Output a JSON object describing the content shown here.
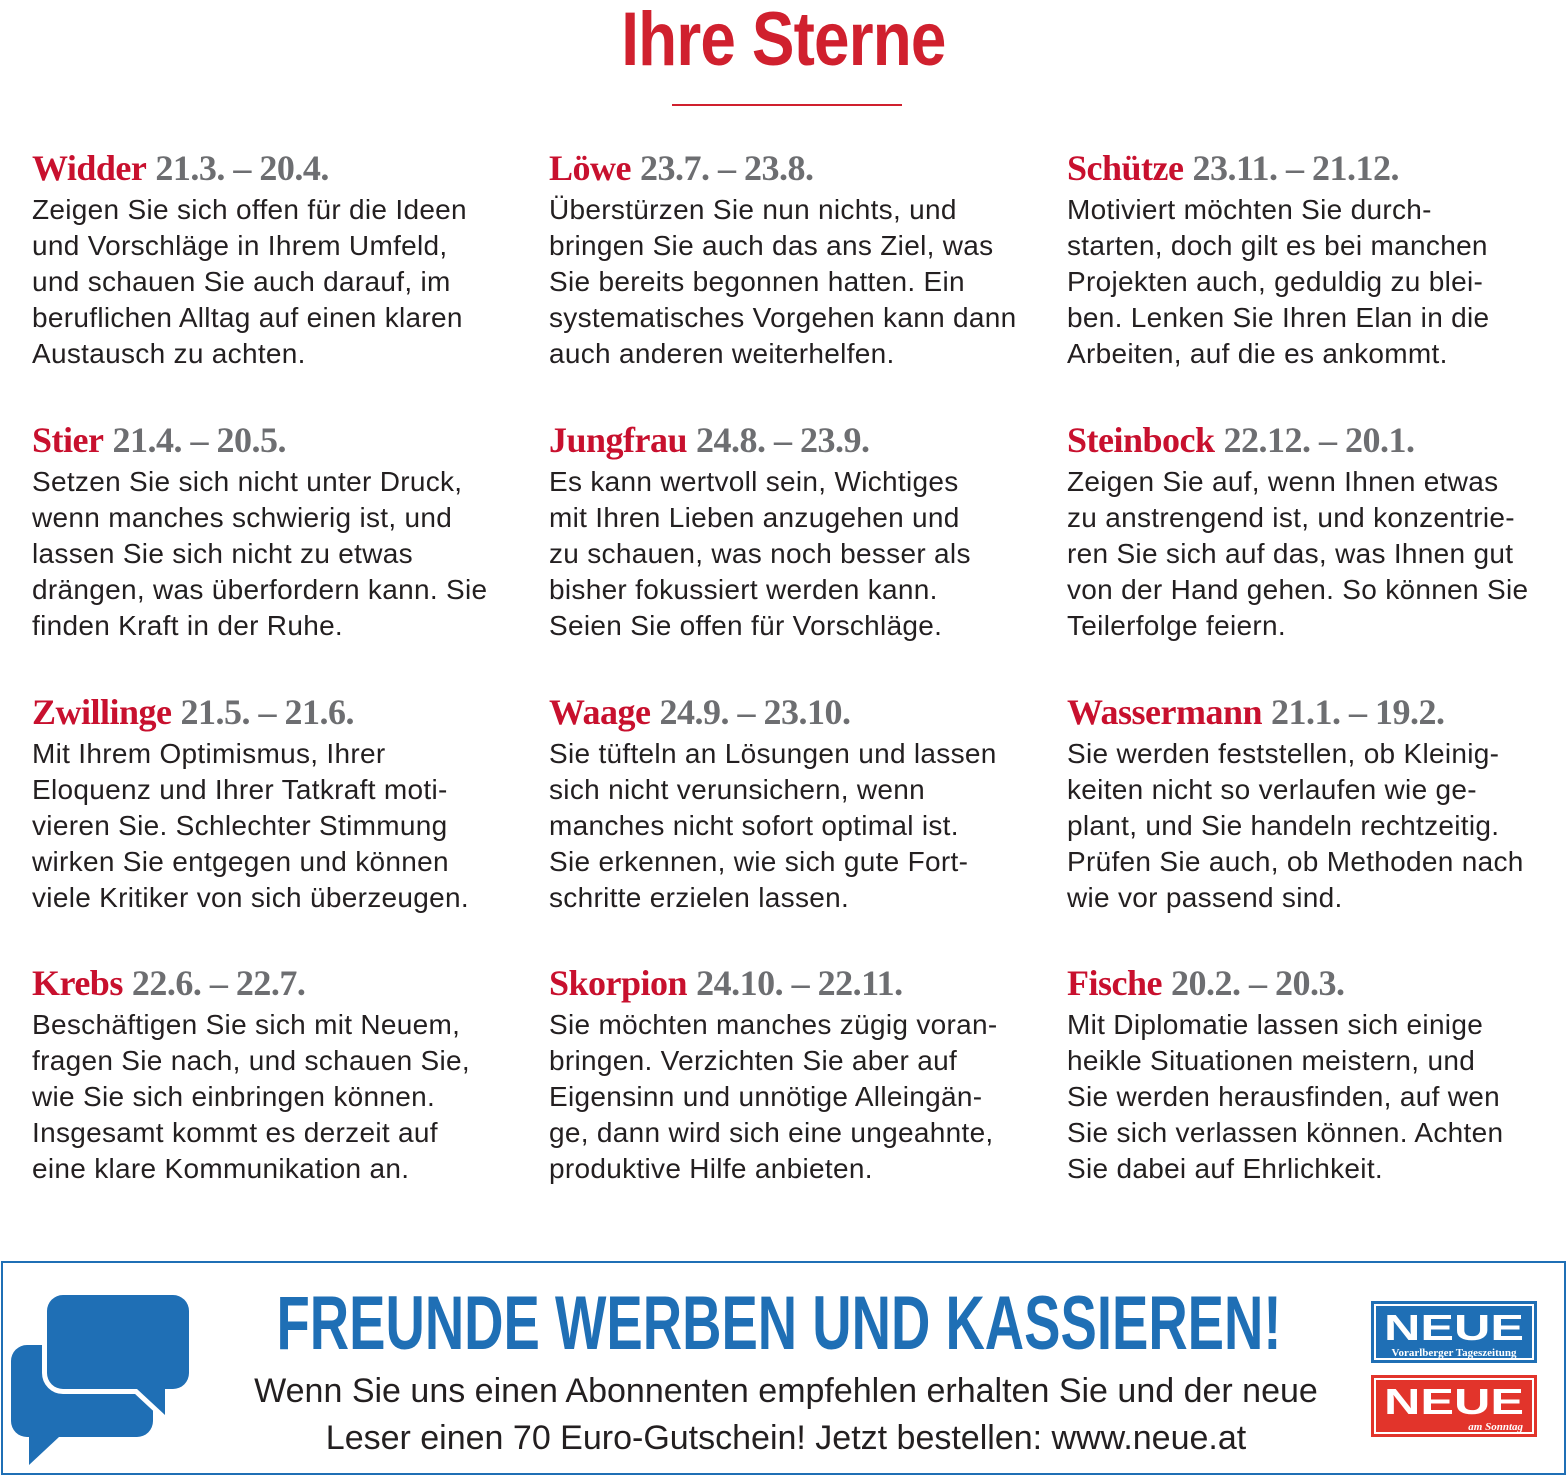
{
  "title": "Ihre Sterne",
  "signs": [
    {
      "name": "Widder",
      "dates": "21.3. – 20.4.",
      "lines": [
        "Zeigen Sie sich offen für die Ideen",
        "und Vorschläge in Ihrem Umfeld,",
        "und schauen Sie auch darauf, im",
        "beruflichen Alltag auf einen klaren",
        "Austausch zu achten."
      ]
    },
    {
      "name": "Stier",
      "dates": "21.4. – 20.5.",
      "lines": [
        "Setzen Sie sich nicht unter Druck,",
        "wenn manches schwierig ist, und",
        "lassen Sie sich nicht zu etwas",
        "drängen, was überfordern kann. Sie",
        "finden Kraft in der Ruhe."
      ]
    },
    {
      "name": "Zwillinge",
      "dates": "21.5. – 21.6.",
      "lines": [
        "Mit Ihrem Optimismus, Ihrer",
        "Eloquenz und Ihrer Tatkraft moti-",
        "vieren Sie. Schlechter Stimmung",
        "wirken Sie entgegen und können",
        "viele Kritiker von sich überzeugen."
      ]
    },
    {
      "name": "Krebs",
      "dates": "22.6. – 22.7.",
      "lines": [
        "Beschäftigen Sie sich mit Neuem,",
        "fragen Sie nach, und schauen Sie,",
        "wie Sie sich einbringen können.",
        "Insgesamt kommt es derzeit auf",
        "eine klare Kommunikation an."
      ]
    },
    {
      "name": "Löwe",
      "dates": "23.7. – 23.8.",
      "lines": [
        "Überstürzen Sie nun nichts, und",
        "bringen Sie auch das ans Ziel, was",
        "Sie bereits begonnen hatten. Ein",
        "systematisches Vorgehen kann dann",
        "auch anderen weiterhelfen."
      ]
    },
    {
      "name": "Jungfrau",
      "dates": "24.8. – 23.9.",
      "lines": [
        "Es kann wertvoll sein, Wichtiges",
        "mit Ihren Lieben anzugehen und",
        "zu schauen, was noch besser als",
        "bisher fokussiert werden kann.",
        "Seien Sie offen für Vorschläge."
      ]
    },
    {
      "name": "Waage",
      "dates": "24.9. – 23.10.",
      "lines": [
        "Sie tüfteln an Lösungen und lassen",
        "sich nicht verunsichern, wenn",
        "manches nicht sofort optimal ist.",
        "Sie erkennen, wie sich gute Fort-",
        "schritte erzielen lassen."
      ]
    },
    {
      "name": "Skorpion",
      "dates": "24.10. – 22.11.",
      "lines": [
        "Sie möchten manches zügig voran-",
        "bringen. Verzichten Sie aber auf",
        "Eigensinn und unnötige Alleingän-",
        "ge, dann wird sich eine ungeahnte,",
        "produktive Hilfe anbieten."
      ]
    },
    {
      "name": "Schütze",
      "dates": "23.11. – 21.12.",
      "lines": [
        "Motiviert möchten Sie durch-",
        "starten, doch gilt es bei manchen",
        "Projekten auch, geduldig zu blei-",
        "ben. Lenken Sie Ihren Elan in die",
        "Arbeiten, auf die es ankommt."
      ]
    },
    {
      "name": "Steinbock",
      "dates": "22.12. – 20.1.",
      "lines": [
        "Zeigen Sie auf, wenn Ihnen etwas",
        "zu anstrengend ist, und konzentrie-",
        "ren Sie sich auf das, was Ihnen gut",
        "von der Hand gehen. So können Sie",
        "Teilerfolge feiern."
      ]
    },
    {
      "name": "Wassermann",
      "dates": "21.1. – 19.2.",
      "lines": [
        "Sie werden feststellen, ob Kleinig-",
        "keiten nicht so verlaufen wie ge-",
        "plant, und Sie handeln rechtzeitig.",
        "Prüfen Sie auch, ob Methoden nach",
        "wie vor passend sind."
      ]
    },
    {
      "name": "Fische",
      "dates": "20.2. – 20.3.",
      "lines": [
        "Mit Diplomatie lassen sich einige",
        "heikle Situationen meistern, und",
        "Sie werden herausfinden, auf wen",
        "Sie sich verlassen können. Achten",
        "Sie dabei auf Ehrlichkeit."
      ]
    }
  ],
  "ad": {
    "headline": "FREUNDE WERBEN UND KASSIEREN!",
    "lines": [
      "Wenn Sie uns einen Abonnenten empfehlen erhalten Sie und der neue",
      "Leser einen 70 Euro-Gutschein! Jetzt bestellen: www.neue.at"
    ],
    "logos": [
      {
        "name": "NEUE",
        "subtitle": "Vorarlberger Tageszeitung"
      },
      {
        "name": "NEUE",
        "subtitle": "am Sonntag"
      }
    ]
  }
}
